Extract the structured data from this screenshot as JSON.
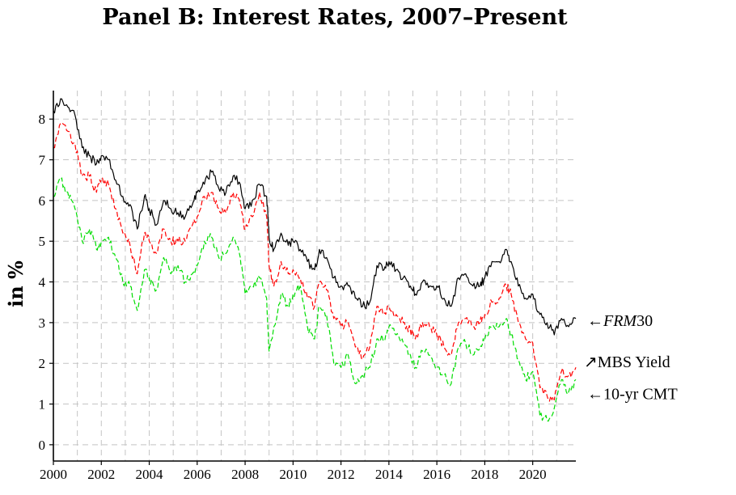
{
  "chart_data": {
    "type": "line",
    "title": "Panel B: Interest Rates, 2007–Present",
    "xlabel": "",
    "ylabel": "in %",
    "xlim": [
      2000,
      2021.8
    ],
    "ylim": [
      -0.4,
      8.7
    ],
    "xticks": [
      2000,
      2002,
      2004,
      2006,
      2008,
      2010,
      2012,
      2014,
      2016,
      2018,
      2020
    ],
    "yticks": [
      0,
      1,
      2,
      3,
      4,
      5,
      6,
      7,
      8
    ],
    "grid": true,
    "series": [
      {
        "name": "FRM30",
        "color": "#000000",
        "dash": "solid",
        "points": [
          [
            2000.0,
            8.2
          ],
          [
            2000.3,
            8.5
          ],
          [
            2000.6,
            8.3
          ],
          [
            2000.9,
            8.1
          ],
          [
            2001.2,
            7.3
          ],
          [
            2001.5,
            7.1
          ],
          [
            2001.8,
            6.9
          ],
          [
            2002.0,
            7.1
          ],
          [
            2002.3,
            7.0
          ],
          [
            2002.6,
            6.5
          ],
          [
            2002.9,
            6.1
          ],
          [
            2003.2,
            5.9
          ],
          [
            2003.5,
            5.3
          ],
          [
            2003.8,
            6.1
          ],
          [
            2004.0,
            5.8
          ],
          [
            2004.3,
            5.4
          ],
          [
            2004.6,
            6.0
          ],
          [
            2004.9,
            5.8
          ],
          [
            2005.2,
            5.7
          ],
          [
            2005.5,
            5.6
          ],
          [
            2005.8,
            5.9
          ],
          [
            2006.0,
            6.2
          ],
          [
            2006.3,
            6.4
          ],
          [
            2006.6,
            6.7
          ],
          [
            2006.9,
            6.3
          ],
          [
            2007.2,
            6.2
          ],
          [
            2007.5,
            6.6
          ],
          [
            2007.8,
            6.4
          ],
          [
            2008.0,
            5.8
          ],
          [
            2008.3,
            6.0
          ],
          [
            2008.6,
            6.4
          ],
          [
            2008.9,
            6.1
          ],
          [
            2009.0,
            5.1
          ],
          [
            2009.2,
            4.8
          ],
          [
            2009.5,
            5.2
          ],
          [
            2009.8,
            4.9
          ],
          [
            2010.0,
            5.0
          ],
          [
            2010.3,
            4.8
          ],
          [
            2010.6,
            4.5
          ],
          [
            2010.9,
            4.3
          ],
          [
            2011.1,
            4.8
          ],
          [
            2011.4,
            4.6
          ],
          [
            2011.7,
            4.1
          ],
          [
            2012.0,
            3.9
          ],
          [
            2012.3,
            3.9
          ],
          [
            2012.6,
            3.6
          ],
          [
            2012.9,
            3.4
          ],
          [
            2013.2,
            3.5
          ],
          [
            2013.5,
            4.4
          ],
          [
            2013.8,
            4.3
          ],
          [
            2014.0,
            4.5
          ],
          [
            2014.3,
            4.3
          ],
          [
            2014.6,
            4.1
          ],
          [
            2014.9,
            3.9
          ],
          [
            2015.1,
            3.7
          ],
          [
            2015.4,
            4.0
          ],
          [
            2015.7,
            3.9
          ],
          [
            2016.0,
            3.9
          ],
          [
            2016.3,
            3.6
          ],
          [
            2016.6,
            3.4
          ],
          [
            2016.9,
            4.1
          ],
          [
            2017.2,
            4.2
          ],
          [
            2017.5,
            3.9
          ],
          [
            2017.8,
            3.9
          ],
          [
            2018.0,
            4.1
          ],
          [
            2018.3,
            4.5
          ],
          [
            2018.6,
            4.5
          ],
          [
            2018.9,
            4.8
          ],
          [
            2019.1,
            4.5
          ],
          [
            2019.4,
            3.9
          ],
          [
            2019.7,
            3.6
          ],
          [
            2020.0,
            3.7
          ],
          [
            2020.3,
            3.2
          ],
          [
            2020.6,
            3.0
          ],
          [
            2020.9,
            2.7
          ],
          [
            2021.2,
            3.1
          ],
          [
            2021.5,
            2.9
          ],
          [
            2021.8,
            3.1
          ]
        ]
      },
      {
        "name": "MBS Yield",
        "color": "#ff0000",
        "dash": "6 3",
        "points": [
          [
            2000.0,
            7.3
          ],
          [
            2000.3,
            7.9
          ],
          [
            2000.6,
            7.7
          ],
          [
            2000.9,
            7.4
          ],
          [
            2001.2,
            6.6
          ],
          [
            2001.5,
            6.6
          ],
          [
            2001.8,
            6.2
          ],
          [
            2002.0,
            6.5
          ],
          [
            2002.3,
            6.4
          ],
          [
            2002.6,
            5.8
          ],
          [
            2002.9,
            5.2
          ],
          [
            2003.2,
            4.9
          ],
          [
            2003.5,
            4.2
          ],
          [
            2003.8,
            5.2
          ],
          [
            2004.0,
            5.0
          ],
          [
            2004.3,
            4.7
          ],
          [
            2004.6,
            5.3
          ],
          [
            2004.9,
            5.0
          ],
          [
            2005.2,
            5.0
          ],
          [
            2005.5,
            5.0
          ],
          [
            2005.8,
            5.4
          ],
          [
            2006.0,
            5.6
          ],
          [
            2006.3,
            6.1
          ],
          [
            2006.6,
            6.2
          ],
          [
            2006.9,
            5.8
          ],
          [
            2007.2,
            5.7
          ],
          [
            2007.5,
            6.2
          ],
          [
            2007.8,
            5.9
          ],
          [
            2008.0,
            5.3
          ],
          [
            2008.3,
            5.6
          ],
          [
            2008.6,
            6.2
          ],
          [
            2008.9,
            5.6
          ],
          [
            2009.0,
            4.4
          ],
          [
            2009.2,
            3.9
          ],
          [
            2009.5,
            4.5
          ],
          [
            2009.8,
            4.2
          ],
          [
            2010.0,
            4.3
          ],
          [
            2010.3,
            4.1
          ],
          [
            2010.6,
            3.6
          ],
          [
            2010.9,
            3.4
          ],
          [
            2011.1,
            4.0
          ],
          [
            2011.4,
            3.8
          ],
          [
            2011.7,
            3.1
          ],
          [
            2012.0,
            2.9
          ],
          [
            2012.3,
            3.0
          ],
          [
            2012.6,
            2.4
          ],
          [
            2012.9,
            2.1
          ],
          [
            2013.2,
            2.4
          ],
          [
            2013.5,
            3.4
          ],
          [
            2013.8,
            3.2
          ],
          [
            2014.0,
            3.4
          ],
          [
            2014.3,
            3.2
          ],
          [
            2014.6,
            3.0
          ],
          [
            2014.9,
            2.8
          ],
          [
            2015.1,
            2.6
          ],
          [
            2015.4,
            3.0
          ],
          [
            2015.7,
            2.9
          ],
          [
            2016.0,
            2.7
          ],
          [
            2016.3,
            2.4
          ],
          [
            2016.6,
            2.2
          ],
          [
            2016.9,
            3.0
          ],
          [
            2017.2,
            3.1
          ],
          [
            2017.5,
            2.9
          ],
          [
            2017.8,
            3.0
          ],
          [
            2018.0,
            3.2
          ],
          [
            2018.3,
            3.5
          ],
          [
            2018.6,
            3.6
          ],
          [
            2018.9,
            3.9
          ],
          [
            2019.1,
            3.7
          ],
          [
            2019.4,
            3.0
          ],
          [
            2019.7,
            2.6
          ],
          [
            2020.0,
            2.5
          ],
          [
            2020.3,
            1.4
          ],
          [
            2020.6,
            1.2
          ],
          [
            2020.9,
            1.1
          ],
          [
            2021.2,
            1.8
          ],
          [
            2021.5,
            1.7
          ],
          [
            2021.8,
            1.9
          ]
        ]
      },
      {
        "name": "10-yr CMT",
        "color": "#00dd00",
        "dash": "6 3",
        "points": [
          [
            2000.0,
            6.1
          ],
          [
            2000.3,
            6.5
          ],
          [
            2000.6,
            6.2
          ],
          [
            2000.9,
            5.8
          ],
          [
            2001.2,
            5.0
          ],
          [
            2001.5,
            5.3
          ],
          [
            2001.8,
            4.8
          ],
          [
            2002.0,
            5.0
          ],
          [
            2002.3,
            5.1
          ],
          [
            2002.6,
            4.6
          ],
          [
            2002.9,
            4.0
          ],
          [
            2003.2,
            3.9
          ],
          [
            2003.5,
            3.3
          ],
          [
            2003.8,
            4.3
          ],
          [
            2004.0,
            4.1
          ],
          [
            2004.3,
            3.8
          ],
          [
            2004.6,
            4.6
          ],
          [
            2004.9,
            4.2
          ],
          [
            2005.2,
            4.4
          ],
          [
            2005.5,
            4.0
          ],
          [
            2005.8,
            4.2
          ],
          [
            2006.0,
            4.4
          ],
          [
            2006.3,
            5.0
          ],
          [
            2006.6,
            5.1
          ],
          [
            2006.9,
            4.6
          ],
          [
            2007.2,
            4.7
          ],
          [
            2007.5,
            5.1
          ],
          [
            2007.8,
            4.6
          ],
          [
            2008.0,
            3.7
          ],
          [
            2008.3,
            3.9
          ],
          [
            2008.6,
            4.1
          ],
          [
            2008.9,
            3.6
          ],
          [
            2009.0,
            2.3
          ],
          [
            2009.2,
            2.9
          ],
          [
            2009.5,
            3.7
          ],
          [
            2009.8,
            3.4
          ],
          [
            2010.0,
            3.7
          ],
          [
            2010.3,
            3.9
          ],
          [
            2010.6,
            2.9
          ],
          [
            2010.9,
            2.6
          ],
          [
            2011.1,
            3.4
          ],
          [
            2011.4,
            3.2
          ],
          [
            2011.7,
            2.0
          ],
          [
            2012.0,
            1.9
          ],
          [
            2012.3,
            2.2
          ],
          [
            2012.6,
            1.5
          ],
          [
            2012.9,
            1.7
          ],
          [
            2013.2,
            1.9
          ],
          [
            2013.5,
            2.6
          ],
          [
            2013.8,
            2.6
          ],
          [
            2014.0,
            2.9
          ],
          [
            2014.3,
            2.7
          ],
          [
            2014.6,
            2.5
          ],
          [
            2014.9,
            2.2
          ],
          [
            2015.1,
            1.9
          ],
          [
            2015.4,
            2.3
          ],
          [
            2015.7,
            2.2
          ],
          [
            2016.0,
            1.9
          ],
          [
            2016.3,
            1.7
          ],
          [
            2016.6,
            1.5
          ],
          [
            2016.9,
            2.4
          ],
          [
            2017.2,
            2.5
          ],
          [
            2017.5,
            2.2
          ],
          [
            2017.8,
            2.4
          ],
          [
            2018.0,
            2.6
          ],
          [
            2018.3,
            2.9
          ],
          [
            2018.6,
            2.9
          ],
          [
            2018.9,
            3.1
          ],
          [
            2019.1,
            2.7
          ],
          [
            2019.4,
            2.1
          ],
          [
            2019.7,
            1.6
          ],
          [
            2020.0,
            1.8
          ],
          [
            2020.3,
            0.7
          ],
          [
            2020.6,
            0.6
          ],
          [
            2020.9,
            0.9
          ],
          [
            2021.2,
            1.6
          ],
          [
            2021.5,
            1.3
          ],
          [
            2021.8,
            1.6
          ]
        ]
      }
    ],
    "annotations": [
      {
        "label": "←FRM30",
        "x": 2021.8,
        "y": 3.1
      },
      {
        "label": "↗MBS Yield",
        "x": 2021.8,
        "y": 1.9
      },
      {
        "label": "←10-yr CMT",
        "x": 2021.8,
        "y": 1.6
      }
    ]
  }
}
